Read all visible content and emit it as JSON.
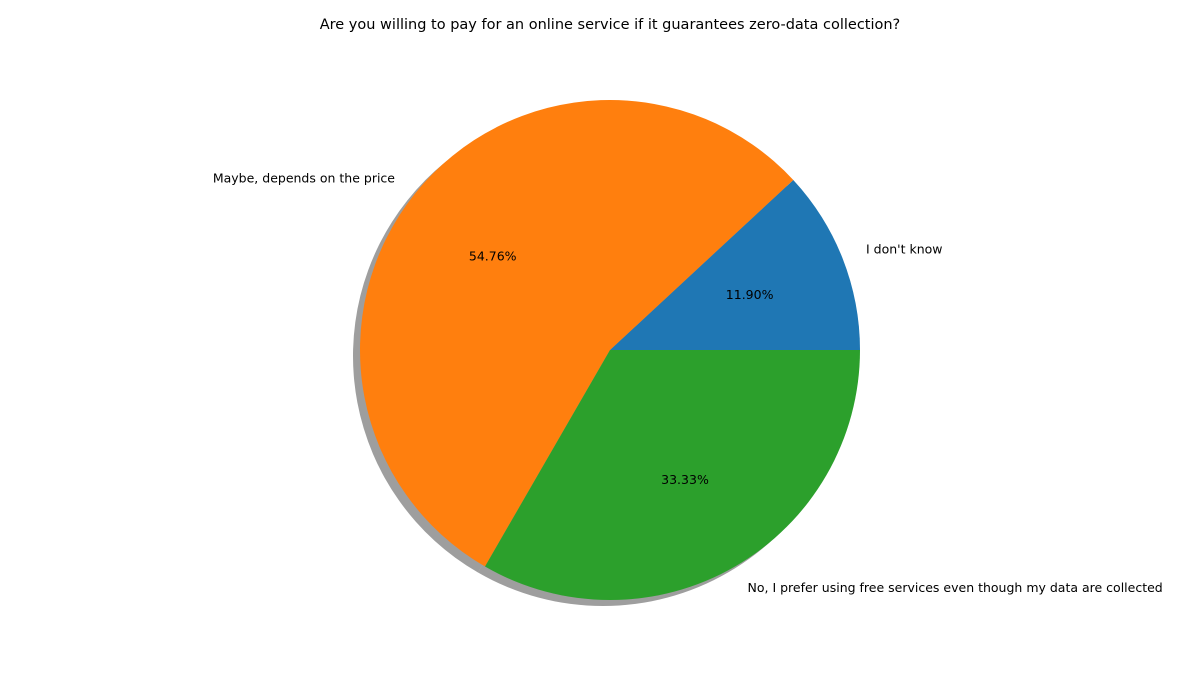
{
  "chart_data": {
    "type": "pie",
    "title": "Are you willing to pay for an online service if it guarantees zero-data collection?",
    "categories": [
      "I don't know",
      "Maybe, depends on the price",
      "No, I prefer using free services even though my data are collected"
    ],
    "values": [
      11.9,
      54.76,
      33.33
    ],
    "value_labels": [
      "11.90%",
      "54.76%",
      "33.33%"
    ],
    "colors": [
      "#1f77b4",
      "#ff7f0e",
      "#2ca02c"
    ],
    "start_angle_deg": 0,
    "direction": "counterclockwise",
    "shadow": true,
    "legend": "none"
  }
}
